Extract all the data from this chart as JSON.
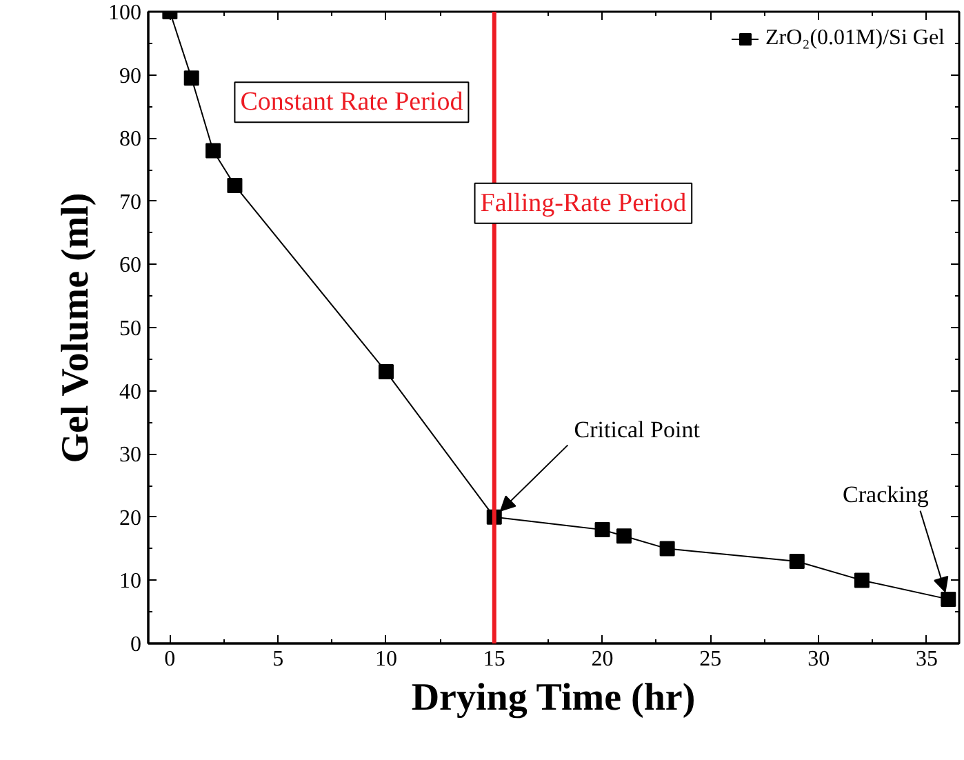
{
  "chart_data": {
    "type": "line",
    "xlabel": "Drying Time (hr)",
    "ylabel": "Gel Volume (ml)",
    "x": [
      0,
      1,
      2,
      3,
      10,
      15,
      20,
      21,
      23,
      29,
      32,
      36
    ],
    "series": [
      {
        "name": "ZrO₂(0.01M)/Si Gel",
        "color": "#000000",
        "values": [
          100,
          89.5,
          78,
          72.5,
          43,
          20,
          18,
          17,
          15,
          13,
          10,
          7
        ]
      }
    ],
    "xlim": [
      -1,
      36.5
    ],
    "xticks": [
      0,
      5,
      10,
      15,
      20,
      25,
      30,
      35
    ],
    "ylim": [
      0,
      100
    ],
    "yticks": [
      0,
      10,
      20,
      30,
      40,
      50,
      60,
      70,
      80,
      90,
      100
    ],
    "ref_lines": [
      {
        "axis": "x",
        "value": 15,
        "color": "#ed1c24",
        "line_style": "solid"
      }
    ],
    "annotations": [
      "Constant Rate Period",
      "Falling-Rate Period",
      {
        "text": "Critical Point",
        "x": 15,
        "y": 20
      },
      {
        "text": "Cracking",
        "x": 36,
        "y": 7
      }
    ],
    "marker": "square",
    "line_style": "solid",
    "legend": "top right",
    "grid": false
  }
}
